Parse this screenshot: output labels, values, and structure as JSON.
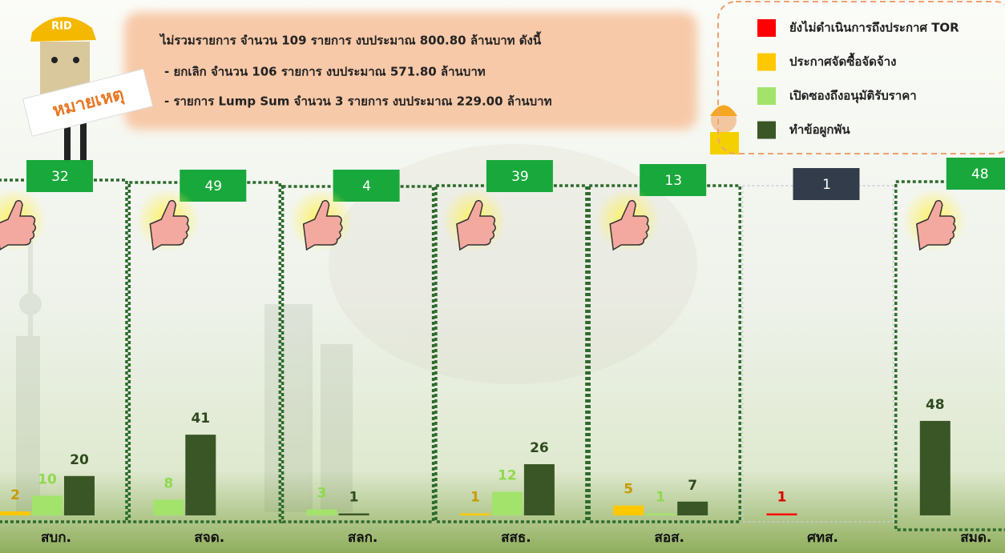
{
  "badge": "RID",
  "note": {
    "label": "หมายเหตุ",
    "lines": [
      "ไม่รวมรายการ จำนวน 109 รายการ งบประมาณ 800.80 ล้านบาท ดังนี้",
      "-  ยกเลิก จำนวน 106 รายการ งบประมาณ 571.80 ล้านบาท",
      "-  รายการ Lump Sum จำนวน 3 รายการ งบประมาณ 229.00 ล้านบาท"
    ]
  },
  "chart_data": {
    "type": "bar",
    "categories": [
      "สบก.",
      "สจด.",
      "สลก.",
      "สสธ.",
      "สอส.",
      "ศทส.",
      "สมด."
    ],
    "totals": [
      32,
      49,
      4,
      39,
      13,
      1,
      48
    ],
    "series": [
      {
        "name": "ยังไม่ดำเนินการถึงประกาศ TOR",
        "color": "#ff0000",
        "values": [
          null,
          null,
          null,
          null,
          null,
          1,
          null
        ]
      },
      {
        "name": "ประกาศจัดซื้อจัดจ้าง",
        "color": "#ffc800",
        "values": [
          2,
          null,
          null,
          1,
          5,
          null,
          null
        ]
      },
      {
        "name": "เปิดซองถึงอนุมัติรับราคา",
        "color": "#a3e36b",
        "values": [
          10,
          8,
          3,
          12,
          1,
          null,
          null
        ]
      },
      {
        "name": "ทำข้อผูกพัน",
        "color": "#3b5626",
        "values": [
          20,
          41,
          1,
          26,
          7,
          null,
          48
        ]
      }
    ],
    "legend": "top-right"
  }
}
